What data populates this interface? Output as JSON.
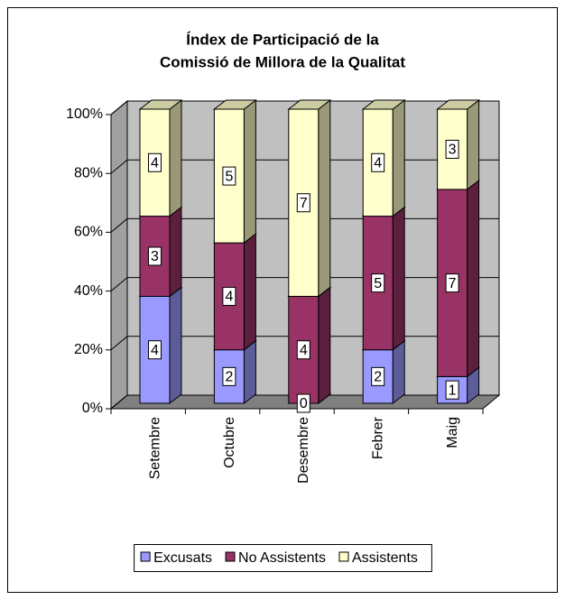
{
  "chart_data": {
    "type": "bar",
    "stacking": "percent",
    "title": [
      "Índex de Participació de la",
      "Comissió de Millora de la Qualitat"
    ],
    "categories": [
      "Setembre",
      "Octubre",
      "Desembre",
      "Febrer",
      "Maig"
    ],
    "series": [
      {
        "name": "Excusats",
        "color": "#9999ff",
        "values": [
          4,
          2,
          0,
          2,
          1
        ]
      },
      {
        "name": "No Assistents",
        "color": "#993366",
        "values": [
          3,
          4,
          4,
          5,
          7
        ]
      },
      {
        "name": "Assistents",
        "color": "#ffffcc",
        "values": [
          4,
          5,
          7,
          4,
          3
        ]
      }
    ],
    "ylim": [
      0,
      100
    ],
    "yticks": [
      {
        "value": 0,
        "label": "0%"
      },
      {
        "value": 20,
        "label": "20%"
      },
      {
        "value": 40,
        "label": "40%"
      },
      {
        "value": 60,
        "label": "60%"
      },
      {
        "value": 80,
        "label": "80%"
      },
      {
        "value": 100,
        "label": "100%"
      }
    ],
    "grid": true,
    "legend": "bottom"
  }
}
